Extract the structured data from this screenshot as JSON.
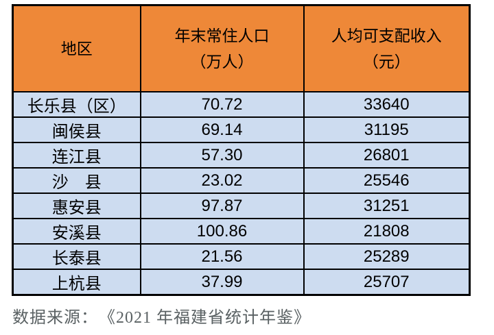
{
  "colors": {
    "header_bg": "#EE8838",
    "row_bg": "#CDDCF0",
    "border": "#000000",
    "source_text_color": "#5A6163",
    "page_bg": "#FFFFFF"
  },
  "table": {
    "headers": [
      {
        "title": "地区",
        "unit": ""
      },
      {
        "title": "年末常住人口",
        "unit": "（万人）"
      },
      {
        "title": "人均可支配收入",
        "unit": "（元）"
      }
    ],
    "rows": [
      {
        "region": "长乐县（区）",
        "population": "70.72",
        "income": "33640"
      },
      {
        "region": "闽侯县",
        "population": "69.14",
        "income": "31195"
      },
      {
        "region": "连江县",
        "population": "57.30",
        "income": "26801"
      },
      {
        "region": "沙　县",
        "population": "23.02",
        "income": "25546"
      },
      {
        "region": "惠安县",
        "population": "97.87",
        "income": "31251"
      },
      {
        "region": "安溪县",
        "population": "100.86",
        "income": "21808"
      },
      {
        "region": "长泰县",
        "population": "21.56",
        "income": "25289"
      },
      {
        "region": "上杭县",
        "population": "37.99",
        "income": "25707"
      }
    ]
  },
  "footer": {
    "source_text": "数据来源：　《2021 年福建省统计年鉴》"
  }
}
